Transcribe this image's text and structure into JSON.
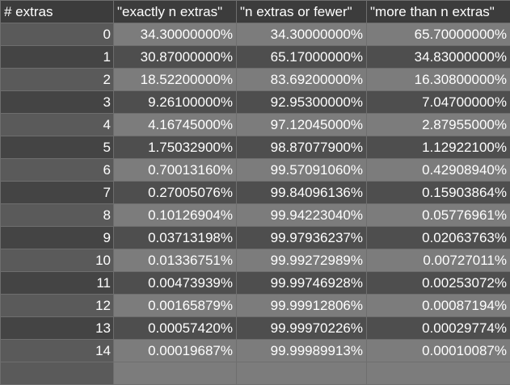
{
  "table": {
    "headers": [
      "# extras",
      "\"exactly n extras\"",
      "\"n extras or fewer\"",
      "\"more than n extras\""
    ],
    "rows": [
      [
        "0",
        "34.30000000%",
        "34.30000000%",
        "65.70000000%"
      ],
      [
        "1",
        "30.87000000%",
        "65.17000000%",
        "34.83000000%"
      ],
      [
        "2",
        "18.52200000%",
        "83.69200000%",
        "16.30800000%"
      ],
      [
        "3",
        "9.26100000%",
        "92.95300000%",
        "7.04700000%"
      ],
      [
        "4",
        "4.16745000%",
        "97.12045000%",
        "2.87955000%"
      ],
      [
        "5",
        "1.75032900%",
        "98.87077900%",
        "1.12922100%"
      ],
      [
        "6",
        "0.70013160%",
        "99.57091060%",
        "0.42908940%"
      ],
      [
        "7",
        "0.27005076%",
        "99.84096136%",
        "0.15903864%"
      ],
      [
        "8",
        "0.10126904%",
        "99.94223040%",
        "0.05776961%"
      ],
      [
        "9",
        "0.03713198%",
        "99.97936237%",
        "0.02063763%"
      ],
      [
        "10",
        "0.01336751%",
        "99.99272989%",
        "0.00727011%"
      ],
      [
        "11",
        "0.00473939%",
        "99.99746928%",
        "0.00253072%"
      ],
      [
        "12",
        "0.00165879%",
        "99.99912806%",
        "0.00087194%"
      ],
      [
        "13",
        "0.00057420%",
        "99.99970226%",
        "0.00029774%"
      ],
      [
        "14",
        "0.00019687%",
        "99.99989913%",
        "0.00010087%"
      ]
    ]
  },
  "colors": {
    "header_bg": "#3c3c3c",
    "row_light": "#7c7c7c",
    "row_dark": "#4e4e4e",
    "text": "#ffffff",
    "grid": "#6e6e6e"
  }
}
